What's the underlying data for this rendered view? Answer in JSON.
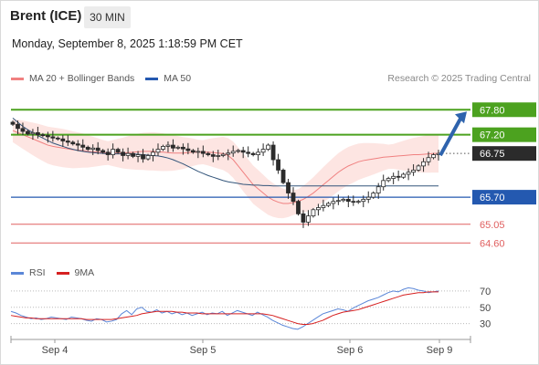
{
  "header": {
    "instrument": "Brent (ICE)",
    "timeframe": "30 MIN",
    "datetime": "Monday, September 8, 2025 1:18:59 PM CET"
  },
  "legend": {
    "bb_label": "MA 20 + Bollinger Bands",
    "ma50_label": "MA 50",
    "credit": "Research © 2025 Trading Central"
  },
  "rsi_legend": {
    "rsi_label": "RSI",
    "ma_label": "9MA"
  },
  "colors": {
    "green": "#4ca21f",
    "blue": "#2459b0",
    "red": "#e06060",
    "dark": "#2b2b2b",
    "bb_fill": "#fde0dd",
    "bb_line": "#f08080",
    "ma50": "#33557a",
    "rsi": "#5b87d8",
    "rsi_ma": "#d62020",
    "arrow": "#2e63ad"
  },
  "chart_data": [
    {
      "type": "candlestick",
      "title": "Brent (ICE) 30 MIN",
      "x_labels": [
        "Sep 4",
        "Sep 5",
        "Sep 6",
        "Sep 9"
      ],
      "ylim": [
        64.3,
        68.2
      ],
      "levels": [
        {
          "value": 67.8,
          "label": "67.80",
          "style": "resistance",
          "color": "#4ca21f"
        },
        {
          "value": 67.2,
          "label": "67.20",
          "style": "resistance",
          "color": "#4ca21f"
        },
        {
          "value": 66.75,
          "label": "66.75",
          "style": "last",
          "color": "#2b2b2b"
        },
        {
          "value": 65.7,
          "label": "65.70",
          "style": "pivot",
          "color": "#2459b0"
        },
        {
          "value": 65.05,
          "label": "65.05",
          "style": "support",
          "color": "#e06060"
        },
        {
          "value": 64.6,
          "label": "64.60",
          "style": "support",
          "color": "#e06060"
        }
      ],
      "closes": [
        67.45,
        67.35,
        67.28,
        67.22,
        67.25,
        67.2,
        67.18,
        67.15,
        67.12,
        67.1,
        67.05,
        67.02,
        66.98,
        66.95,
        66.9,
        66.85,
        66.88,
        66.82,
        66.78,
        66.72,
        66.85,
        66.78,
        66.7,
        66.75,
        66.68,
        66.72,
        66.62,
        66.7,
        66.78,
        66.85,
        66.92,
        66.95,
        66.88,
        66.9,
        66.86,
        66.82,
        66.78,
        66.8,
        66.75,
        66.72,
        66.68,
        66.7,
        66.73,
        66.76,
        66.8,
        66.82,
        66.78,
        66.75,
        66.72,
        66.78,
        66.85,
        66.95,
        66.6,
        66.35,
        66.05,
        65.8,
        65.6,
        65.3,
        65.1,
        65.25,
        65.4,
        65.45,
        65.5,
        65.55,
        65.6,
        65.62,
        65.65,
        65.6,
        65.58,
        65.6,
        65.65,
        65.7,
        65.8,
        65.95,
        66.1,
        66.15,
        66.2,
        66.18,
        66.25,
        66.3,
        66.35,
        66.45,
        66.55,
        66.65,
        66.72,
        66.75
      ],
      "ma20": [
        67.3,
        67.25,
        67.2,
        67.15,
        67.1,
        67.05,
        67.0,
        66.95,
        66.92,
        66.9,
        66.88,
        66.86,
        66.84,
        66.83,
        66.82,
        66.8,
        66.79,
        66.78,
        66.77,
        66.76,
        66.76,
        66.76,
        66.76,
        66.77,
        66.78,
        66.79,
        66.8,
        66.8,
        66.8,
        66.79,
        66.78,
        66.77,
        66.76,
        66.76,
        66.76,
        66.77,
        66.78,
        66.78,
        66.78,
        66.78,
        66.77,
        66.76,
        66.75,
        66.7,
        66.6,
        66.45,
        66.3,
        66.15,
        66.0,
        65.9,
        65.8,
        65.7,
        65.63,
        65.58,
        65.55,
        65.55,
        65.57,
        65.6,
        65.65,
        65.72,
        65.8,
        65.9,
        66.0,
        66.1,
        66.2,
        66.3,
        66.38,
        66.45,
        66.5,
        66.55,
        66.58,
        66.6,
        66.62,
        66.64,
        66.66,
        66.67,
        66.68,
        66.69,
        66.7,
        66.71,
        66.72,
        66.72,
        66.73,
        66.74,
        66.75,
        66.75
      ],
      "ma50": [
        67.6,
        67.5,
        67.4,
        67.32,
        67.25,
        67.18,
        67.12,
        67.06,
        67.0,
        66.96,
        66.92,
        66.88,
        66.85,
        66.82,
        66.8,
        66.78,
        66.77,
        66.76,
        66.75,
        66.74,
        66.74,
        66.74,
        66.74,
        66.74,
        66.74,
        66.73,
        66.72,
        66.71,
        66.7,
        66.69,
        66.67,
        66.64,
        66.6,
        66.55,
        66.5,
        66.44,
        66.38,
        66.32,
        66.27,
        66.22,
        66.18,
        66.14,
        66.1,
        66.07,
        66.05,
        66.03,
        66.01,
        66.0,
        65.99,
        65.99,
        65.98,
        65.98,
        65.97,
        65.97,
        65.97,
        65.97,
        65.97,
        65.97,
        65.97,
        65.97,
        65.97,
        65.97,
        65.97,
        65.97,
        65.97,
        65.97,
        65.97,
        65.97,
        65.97,
        65.97,
        65.97,
        65.97,
        65.97,
        65.97,
        65.97,
        65.97,
        65.97,
        65.97,
        65.97,
        65.97,
        65.97,
        65.97,
        65.97,
        65.97,
        65.97,
        65.97
      ]
    },
    {
      "type": "line",
      "title": "RSI",
      "yticks": [
        30,
        50,
        70
      ],
      "ylim": [
        15,
        80
      ],
      "series": [
        {
          "name": "RSI",
          "values": [
            45,
            43,
            40,
            38,
            36,
            37,
            35,
            36,
            38,
            37,
            36,
            35,
            38,
            37,
            36,
            34,
            33,
            36,
            35,
            32,
            33,
            35,
            42,
            46,
            41,
            48,
            50,
            45,
            44,
            47,
            43,
            45,
            42,
            44,
            41,
            43,
            40,
            42,
            44,
            41,
            43,
            42,
            45,
            40,
            43,
            46,
            44,
            42,
            40,
            44,
            41,
            38,
            34,
            31,
            28,
            26,
            24,
            23,
            26,
            30,
            34,
            38,
            42,
            44,
            46,
            48,
            47,
            45,
            49,
            52,
            55,
            58,
            60,
            62,
            65,
            68,
            70,
            69,
            72,
            74,
            73,
            71,
            70,
            68,
            69,
            70
          ]
        },
        {
          "name": "9MA",
          "values": [
            40,
            39,
            38,
            37,
            37,
            36,
            36,
            36,
            36,
            36,
            36,
            36,
            36,
            36,
            36,
            35,
            35,
            35,
            35,
            35,
            35,
            36,
            37,
            38,
            39,
            40,
            42,
            43,
            44,
            45,
            45,
            45,
            45,
            44,
            44,
            43,
            43,
            43,
            42,
            42,
            42,
            42,
            42,
            42,
            42,
            42,
            42,
            42,
            42,
            42,
            42,
            41,
            40,
            38,
            36,
            34,
            32,
            30,
            29,
            29,
            30,
            32,
            34,
            37,
            40,
            42,
            44,
            45,
            46,
            47,
            49,
            51,
            53,
            55,
            57,
            59,
            61,
            63,
            65,
            66,
            67,
            68,
            68,
            69,
            69,
            69
          ]
        }
      ]
    }
  ]
}
